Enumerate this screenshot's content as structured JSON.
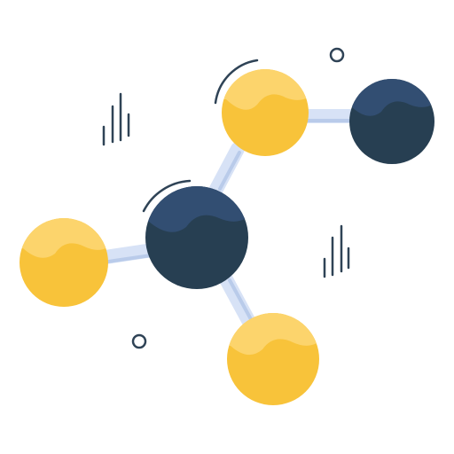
{
  "illustration": {
    "icon": "molecule-icon",
    "colors": {
      "background": "#ffffff",
      "gold_atom": "#f8c33a",
      "gold_atom_highlight": "#fcd46c",
      "navy_atom": "#273f52",
      "navy_atom_highlight": "#324e72",
      "bond": "#d7e2f6",
      "bond_shade": "#b9cbea",
      "line_art": "#2f4356"
    }
  }
}
